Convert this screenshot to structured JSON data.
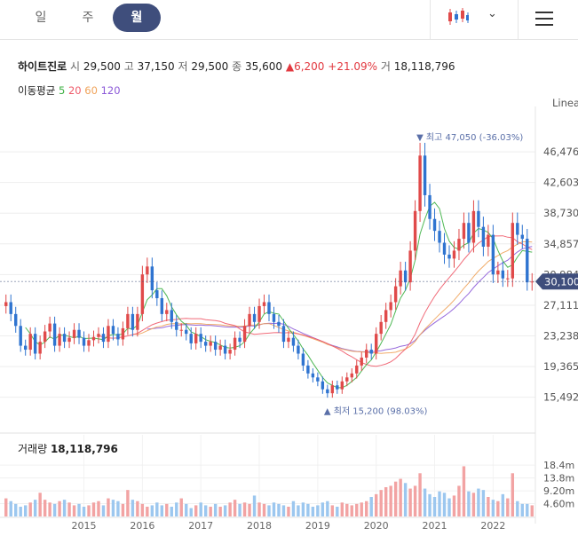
{
  "tabs": [
    {
      "label": "일"
    },
    {
      "label": "주"
    },
    {
      "label": "월",
      "active": true
    }
  ],
  "stock": {
    "name": "하이트진로",
    "open_label": "시",
    "open": "29,500",
    "high_label": "고",
    "high": "37,150",
    "low_label": "저",
    "low": "29,500",
    "close_label": "종",
    "close": "35,600",
    "change_arrow": "▲",
    "change": "6,200",
    "change_pct": "+21.09%",
    "volume_label": "거",
    "volume": "18,118,796"
  },
  "ma": {
    "label": "이동평균",
    "p5": "5",
    "p20": "20",
    "p60": "60",
    "p120": "120",
    "colors": {
      "p5": "#3cb043",
      "p20": "#ef5b6a",
      "p60": "#f0a35a",
      "p120": "#8c5ad8"
    }
  },
  "volume_panel": {
    "label": "거래량",
    "value": "18,118,796"
  },
  "colors": {
    "up": "#e04a4a",
    "down": "#2f74d0",
    "up_vol": "#f2a3a3",
    "down_vol": "#9cc7ef",
    "accent": "#3f4e7c"
  },
  "chart_data": {
    "type": "candlestick",
    "scale_label": "Linear",
    "interval": "monthly",
    "price_ticks": [
      46476,
      42603,
      38730,
      34857,
      30984,
      27111,
      23238,
      19365,
      15492
    ],
    "price_tick_labels": [
      "46,476",
      "42,603",
      "38,730",
      "34,857",
      "30,984",
      "27,111",
      "23,238",
      "19,365",
      "15,492"
    ],
    "ylim": [
      14000,
      48500
    ],
    "current_price": "30,100",
    "current_value": 30100,
    "max_label": "최고 47,050 (-36.03%)",
    "max_value": 47050,
    "min_label": "최저 15,200 (98.03%)",
    "min_value": 15200,
    "x_start": "2014-03",
    "years": [
      "2015",
      "2016",
      "2017",
      "2018",
      "2019",
      "2020",
      "2021",
      "2022"
    ],
    "volume_ticks": [
      "18.4m",
      "13.8m",
      "9.20m",
      "4.60m"
    ],
    "volume_tick_values": [
      18.4,
      13.8,
      9.2,
      4.6
    ],
    "closes": [
      27500,
      26000,
      24500,
      22000,
      21500,
      23500,
      21000,
      22500,
      23800,
      24800,
      22000,
      23500,
      22500,
      23000,
      24000,
      23000,
      22000,
      22700,
      23100,
      23500,
      22500,
      24500,
      23500,
      22800,
      24200,
      26000,
      24000,
      26000,
      31000,
      32000,
      29000,
      28000,
      26000,
      26500,
      25000,
      24000,
      24000,
      23500,
      22300,
      23500,
      22500,
      22000,
      22500,
      21500,
      22000,
      21000,
      21500,
      23000,
      22500,
      24500,
      26000,
      25000,
      27000,
      27500,
      26000,
      25000,
      24500,
      22500,
      23000,
      22000,
      21000,
      19500,
      18500,
      18000,
      17500,
      16500,
      16000,
      17000,
      16500,
      17500,
      18000,
      18500,
      19500,
      20500,
      21500,
      21000,
      23500,
      25000,
      26500,
      27500,
      29500,
      31500,
      30000,
      34000,
      39000,
      46000,
      41000,
      38000,
      36500,
      35000,
      33500,
      33000,
      34000,
      35500,
      37500,
      35000,
      39000,
      37000,
      34500,
      36000,
      31000,
      31500,
      30500,
      30500,
      37500,
      36000,
      35500,
      30000,
      30100
    ],
    "volumes": [
      6.5,
      5.5,
      4.5,
      3.5,
      4.0,
      5.0,
      6.0,
      8.5,
      6.0,
      5.0,
      4.5,
      5.5,
      6.0,
      5.0,
      4.0,
      4.5,
      3.5,
      4.0,
      5.0,
      5.5,
      4.0,
      6.5,
      6.0,
      5.5,
      4.5,
      9.5,
      6.0,
      5.5,
      4.5,
      3.5,
      4.0,
      5.0,
      4.0,
      4.5,
      3.5,
      5.0,
      6.5,
      4.5,
      3.0,
      4.0,
      5.0,
      4.0,
      3.5,
      4.5,
      3.5,
      4.0,
      5.0,
      6.0,
      4.5,
      5.0,
      4.5,
      7.5,
      5.0,
      4.5,
      4.0,
      5.0,
      4.5,
      4.0,
      3.5,
      5.5,
      4.0,
      5.0,
      4.5,
      3.5,
      4.0,
      5.0,
      5.5,
      4.0,
      3.5,
      5.0,
      4.5,
      4.0,
      4.5,
      5.0,
      5.5,
      7.0,
      8.0,
      9.5,
      10.5,
      11.0,
      12.5,
      13.5,
      12.0,
      10.0,
      11.0,
      15.5,
      10.0,
      8.0,
      7.0,
      9.0,
      8.5,
      6.5,
      7.5,
      11.0,
      18.0,
      9.0,
      8.5,
      10.0,
      9.5,
      7.0,
      6.0,
      5.5,
      8.0,
      6.5,
      15.5,
      5.5,
      4.5,
      4.5,
      4.0
    ]
  }
}
